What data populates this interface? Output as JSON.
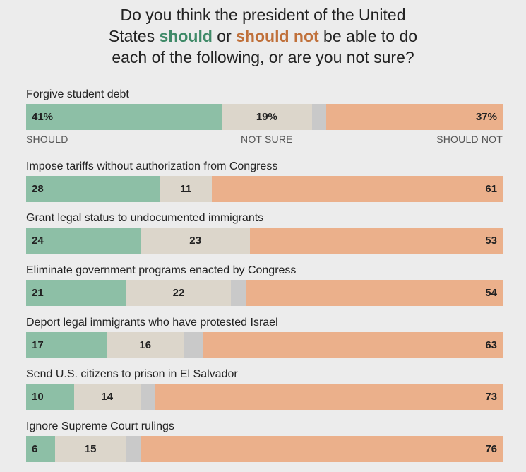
{
  "title": {
    "line1": "Do you think the president of the United",
    "line2_prefix": "States ",
    "should": "should",
    "or": " or ",
    "should_not": "should not",
    "line2_suffix": " be able to do",
    "line3": "each of the following, or are you not sure?"
  },
  "legend": {
    "should": "SHOULD",
    "not_sure": "NOT SURE",
    "should_not": "SHOULD NOT"
  },
  "colors": {
    "should": "#8dbfa6",
    "not_sure": "#dcd6cb",
    "gap": "#c9c9c9",
    "should_not": "#ebb08b",
    "title_should": "#3f8a68",
    "title_should_not": "#c0703a",
    "background": "#ececec"
  },
  "chart_data": {
    "type": "bar",
    "orientation": "horizontal-stacked",
    "unit": "percent",
    "title": "Do you think the president of the United States should or should not be able to do each of the following, or are you not sure?",
    "series_names": [
      "Should",
      "Not sure",
      "Should not"
    ],
    "rows": [
      {
        "label": "Forgive student debt",
        "should": 41,
        "not_sure": 19,
        "should_not": 37,
        "should_label": "41%",
        "not_sure_label": "19%",
        "should_not_label": "37%"
      },
      {
        "label": "Impose tariffs without authorization from Congress",
        "should": 28,
        "not_sure": 11,
        "should_not": 61,
        "should_label": "28",
        "not_sure_label": "11",
        "should_not_label": "61"
      },
      {
        "label": "Grant legal status to undocumented immigrants",
        "should": 24,
        "not_sure": 23,
        "should_not": 53,
        "should_label": "24",
        "not_sure_label": "23",
        "should_not_label": "53"
      },
      {
        "label": "Eliminate government programs enacted by Congress",
        "should": 21,
        "not_sure": 22,
        "should_not": 54,
        "should_label": "21",
        "not_sure_label": "22",
        "should_not_label": "54"
      },
      {
        "label": "Deport legal immigrants who have protested Israel",
        "should": 17,
        "not_sure": 16,
        "should_not": 63,
        "should_label": "17",
        "not_sure_label": "16",
        "should_not_label": "63"
      },
      {
        "label": "Send U.S. citizens to prison in El Salvador",
        "should": 10,
        "not_sure": 14,
        "should_not": 73,
        "should_label": "10",
        "not_sure_label": "14",
        "should_not_label": "73"
      },
      {
        "label": "Ignore Supreme Court rulings",
        "should": 6,
        "not_sure": 15,
        "should_not": 76,
        "should_label": "6",
        "not_sure_label": "15",
        "should_not_label": "76"
      }
    ]
  }
}
